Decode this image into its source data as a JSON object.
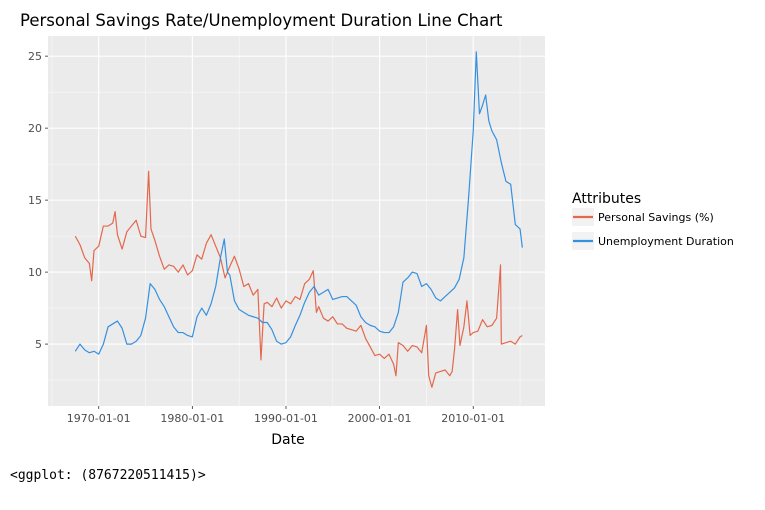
{
  "chart_data": {
    "type": "line",
    "title": "Personal Savings Rate/Unemployment Duration Line Chart",
    "xlabel": "Date",
    "ylabel": "",
    "x_ticks": [
      "1970-01-01",
      "1980-01-01",
      "1990-01-01",
      "2000-01-01",
      "2010-01-01"
    ],
    "y_ticks": [
      5,
      10,
      15,
      20,
      25
    ],
    "xlim": [
      "1964-08-01",
      "2017-09-01"
    ],
    "ylim": [
      0.7,
      26.4
    ],
    "grid": true,
    "panel_background": "#ebebeb",
    "legend": {
      "title": "Attributes",
      "position": "right"
    },
    "series": [
      {
        "name": "Personal Savings (%)",
        "color": "#e4684d",
        "points": [
          [
            "1967-07-01",
            12.5
          ],
          [
            "1968-01-01",
            11.9
          ],
          [
            "1968-07-01",
            11.0
          ],
          [
            "1969-01-01",
            10.6
          ],
          [
            "1969-04-01",
            9.4
          ],
          [
            "1969-07-01",
            11.5
          ],
          [
            "1970-01-01",
            11.8
          ],
          [
            "1970-07-01",
            13.2
          ],
          [
            "1971-01-01",
            13.2
          ],
          [
            "1971-07-01",
            13.4
          ],
          [
            "1971-10-01",
            14.2
          ],
          [
            "1972-01-01",
            12.6
          ],
          [
            "1972-07-01",
            11.6
          ],
          [
            "1973-01-01",
            12.8
          ],
          [
            "1973-07-01",
            13.2
          ],
          [
            "1974-01-01",
            13.6
          ],
          [
            "1974-07-01",
            12.5
          ],
          [
            "1975-01-01",
            12.4
          ],
          [
            "1975-05-01",
            17.0
          ],
          [
            "1975-08-01",
            13.0
          ],
          [
            "1976-01-01",
            12.2
          ],
          [
            "1976-07-01",
            11.1
          ],
          [
            "1977-01-01",
            10.2
          ],
          [
            "1977-07-01",
            10.5
          ],
          [
            "1978-01-01",
            10.4
          ],
          [
            "1978-07-01",
            10.0
          ],
          [
            "1979-01-01",
            10.5
          ],
          [
            "1979-07-01",
            9.8
          ],
          [
            "1980-01-01",
            10.1
          ],
          [
            "1980-07-01",
            11.2
          ],
          [
            "1981-01-01",
            10.9
          ],
          [
            "1981-07-01",
            12.0
          ],
          [
            "1982-01-01",
            12.6
          ],
          [
            "1982-07-01",
            11.8
          ],
          [
            "1983-01-01",
            11.0
          ],
          [
            "1983-07-01",
            9.6
          ],
          [
            "1984-01-01",
            10.4
          ],
          [
            "1984-07-01",
            11.1
          ],
          [
            "1985-01-01",
            10.2
          ],
          [
            "1985-07-01",
            9.0
          ],
          [
            "1986-01-01",
            9.2
          ],
          [
            "1986-07-01",
            8.4
          ],
          [
            "1987-01-01",
            8.8
          ],
          [
            "1987-05-01",
            3.9
          ],
          [
            "1987-09-01",
            7.8
          ],
          [
            "1988-01-01",
            7.9
          ],
          [
            "1988-07-01",
            7.6
          ],
          [
            "1989-01-01",
            8.2
          ],
          [
            "1989-07-01",
            7.5
          ],
          [
            "1990-01-01",
            8.0
          ],
          [
            "1990-07-01",
            7.8
          ],
          [
            "1991-01-01",
            8.3
          ],
          [
            "1991-07-01",
            8.1
          ],
          [
            "1992-01-01",
            9.2
          ],
          [
            "1992-07-01",
            9.5
          ],
          [
            "1992-12-01",
            10.1
          ],
          [
            "1993-04-01",
            7.2
          ],
          [
            "1993-07-01",
            7.6
          ],
          [
            "1994-01-01",
            6.8
          ],
          [
            "1994-07-01",
            6.6
          ],
          [
            "1995-01-01",
            6.9
          ],
          [
            "1995-07-01",
            6.4
          ],
          [
            "1996-01-01",
            6.4
          ],
          [
            "1996-07-01",
            6.1
          ],
          [
            "1997-01-01",
            6.0
          ],
          [
            "1997-07-01",
            5.9
          ],
          [
            "1998-01-01",
            6.3
          ],
          [
            "1998-07-01",
            5.4
          ],
          [
            "1999-01-01",
            4.8
          ],
          [
            "1999-07-01",
            4.2
          ],
          [
            "2000-01-01",
            4.3
          ],
          [
            "2000-07-01",
            4.0
          ],
          [
            "2001-01-01",
            4.3
          ],
          [
            "2001-07-01",
            3.6
          ],
          [
            "2001-10-01",
            2.8
          ],
          [
            "2002-01-01",
            5.1
          ],
          [
            "2002-07-01",
            4.9
          ],
          [
            "2003-01-01",
            4.5
          ],
          [
            "2003-07-01",
            4.9
          ],
          [
            "2004-01-01",
            4.8
          ],
          [
            "2004-07-01",
            4.4
          ],
          [
            "2005-01-01",
            6.3
          ],
          [
            "2005-04-01",
            2.8
          ],
          [
            "2005-08-01",
            2.0
          ],
          [
            "2006-01-01",
            3.0
          ],
          [
            "2006-07-01",
            3.1
          ],
          [
            "2007-01-01",
            3.2
          ],
          [
            "2007-07-01",
            2.8
          ],
          [
            "2007-10-01",
            3.1
          ],
          [
            "2008-01-01",
            4.6
          ],
          [
            "2008-05-01",
            7.4
          ],
          [
            "2008-08-01",
            4.9
          ],
          [
            "2009-01-01",
            6.2
          ],
          [
            "2009-05-01",
            8.0
          ],
          [
            "2009-09-01",
            5.6
          ],
          [
            "2010-01-01",
            5.8
          ],
          [
            "2010-07-01",
            5.9
          ],
          [
            "2011-01-01",
            6.7
          ],
          [
            "2011-07-01",
            6.2
          ],
          [
            "2012-01-01",
            6.3
          ],
          [
            "2012-07-01",
            6.8
          ],
          [
            "2012-12-01",
            10.5
          ],
          [
            "2013-01-01",
            5.0
          ],
          [
            "2013-07-01",
            5.1
          ],
          [
            "2014-01-01",
            5.2
          ],
          [
            "2014-07-01",
            5.0
          ],
          [
            "2015-01-01",
            5.5
          ],
          [
            "2015-04-01",
            5.6
          ]
        ]
      },
      {
        "name": "Unemployment Duration",
        "color": "#3690e0",
        "points": [
          [
            "1967-07-01",
            4.5
          ],
          [
            "1968-01-01",
            5.0
          ],
          [
            "1968-07-01",
            4.6
          ],
          [
            "1969-01-01",
            4.4
          ],
          [
            "1969-07-01",
            4.5
          ],
          [
            "1970-01-01",
            4.3
          ],
          [
            "1970-07-01",
            5.0
          ],
          [
            "1971-01-01",
            6.2
          ],
          [
            "1971-07-01",
            6.4
          ],
          [
            "1972-01-01",
            6.6
          ],
          [
            "1972-07-01",
            6.1
          ],
          [
            "1973-01-01",
            5.0
          ],
          [
            "1973-07-01",
            5.0
          ],
          [
            "1974-01-01",
            5.2
          ],
          [
            "1974-07-01",
            5.6
          ],
          [
            "1975-01-01",
            6.8
          ],
          [
            "1975-07-01",
            9.2
          ],
          [
            "1976-01-01",
            8.8
          ],
          [
            "1976-07-01",
            8.1
          ],
          [
            "1977-01-01",
            7.6
          ],
          [
            "1977-07-01",
            6.9
          ],
          [
            "1978-01-01",
            6.2
          ],
          [
            "1978-07-01",
            5.8
          ],
          [
            "1979-01-01",
            5.8
          ],
          [
            "1979-07-01",
            5.6
          ],
          [
            "1980-01-01",
            5.5
          ],
          [
            "1980-07-01",
            6.9
          ],
          [
            "1981-01-01",
            7.5
          ],
          [
            "1981-07-01",
            7.0
          ],
          [
            "1982-01-01",
            7.8
          ],
          [
            "1982-07-01",
            9.0
          ],
          [
            "1983-01-01",
            11.0
          ],
          [
            "1983-06-01",
            12.3
          ],
          [
            "1983-10-01",
            10.0
          ],
          [
            "1984-01-01",
            9.8
          ],
          [
            "1984-07-01",
            8.0
          ],
          [
            "1985-01-01",
            7.4
          ],
          [
            "1985-07-01",
            7.2
          ],
          [
            "1986-01-01",
            7.0
          ],
          [
            "1986-07-01",
            6.9
          ],
          [
            "1987-01-01",
            6.8
          ],
          [
            "1987-07-01",
            6.5
          ],
          [
            "1988-01-01",
            6.5
          ],
          [
            "1988-07-01",
            6.0
          ],
          [
            "1989-01-01",
            5.2
          ],
          [
            "1989-07-01",
            5.0
          ],
          [
            "1990-01-01",
            5.1
          ],
          [
            "1990-07-01",
            5.5
          ],
          [
            "1991-01-01",
            6.3
          ],
          [
            "1991-07-01",
            7.0
          ],
          [
            "1992-01-01",
            7.9
          ],
          [
            "1992-07-01",
            8.6
          ],
          [
            "1993-01-01",
            9.0
          ],
          [
            "1993-07-01",
            8.4
          ],
          [
            "1994-01-01",
            8.6
          ],
          [
            "1994-07-01",
            8.8
          ],
          [
            "1995-01-01",
            8.1
          ],
          [
            "1995-07-01",
            8.2
          ],
          [
            "1996-01-01",
            8.3
          ],
          [
            "1996-07-01",
            8.3
          ],
          [
            "1997-01-01",
            8.0
          ],
          [
            "1997-07-01",
            7.7
          ],
          [
            "1998-01-01",
            6.9
          ],
          [
            "1998-07-01",
            6.5
          ],
          [
            "1999-01-01",
            6.3
          ],
          [
            "1999-07-01",
            6.2
          ],
          [
            "2000-01-01",
            5.9
          ],
          [
            "2000-07-01",
            5.8
          ],
          [
            "2001-01-01",
            5.8
          ],
          [
            "2001-07-01",
            6.2
          ],
          [
            "2002-01-01",
            7.2
          ],
          [
            "2002-07-01",
            9.3
          ],
          [
            "2003-01-01",
            9.6
          ],
          [
            "2003-07-01",
            10.0
          ],
          [
            "2004-01-01",
            9.9
          ],
          [
            "2004-07-01",
            9.0
          ],
          [
            "2005-01-01",
            9.2
          ],
          [
            "2005-07-01",
            8.8
          ],
          [
            "2006-01-01",
            8.2
          ],
          [
            "2006-07-01",
            8.0
          ],
          [
            "2007-01-01",
            8.3
          ],
          [
            "2007-07-01",
            8.6
          ],
          [
            "2008-01-01",
            8.9
          ],
          [
            "2008-07-01",
            9.5
          ],
          [
            "2009-01-01",
            11.0
          ],
          [
            "2009-07-01",
            15.1
          ],
          [
            "2010-01-01",
            19.8
          ],
          [
            "2010-05-01",
            25.3
          ],
          [
            "2010-09-01",
            21.0
          ],
          [
            "2011-01-01",
            21.6
          ],
          [
            "2011-05-01",
            22.3
          ],
          [
            "2011-09-01",
            20.5
          ],
          [
            "2012-01-01",
            19.8
          ],
          [
            "2012-07-01",
            19.2
          ],
          [
            "2013-01-01",
            17.6
          ],
          [
            "2013-07-01",
            16.3
          ],
          [
            "2014-01-01",
            16.1
          ],
          [
            "2014-07-01",
            13.3
          ],
          [
            "2015-01-01",
            13.0
          ],
          [
            "2015-04-01",
            11.7
          ]
        ]
      }
    ]
  },
  "caption": "<ggplot: (8767220511415)>"
}
